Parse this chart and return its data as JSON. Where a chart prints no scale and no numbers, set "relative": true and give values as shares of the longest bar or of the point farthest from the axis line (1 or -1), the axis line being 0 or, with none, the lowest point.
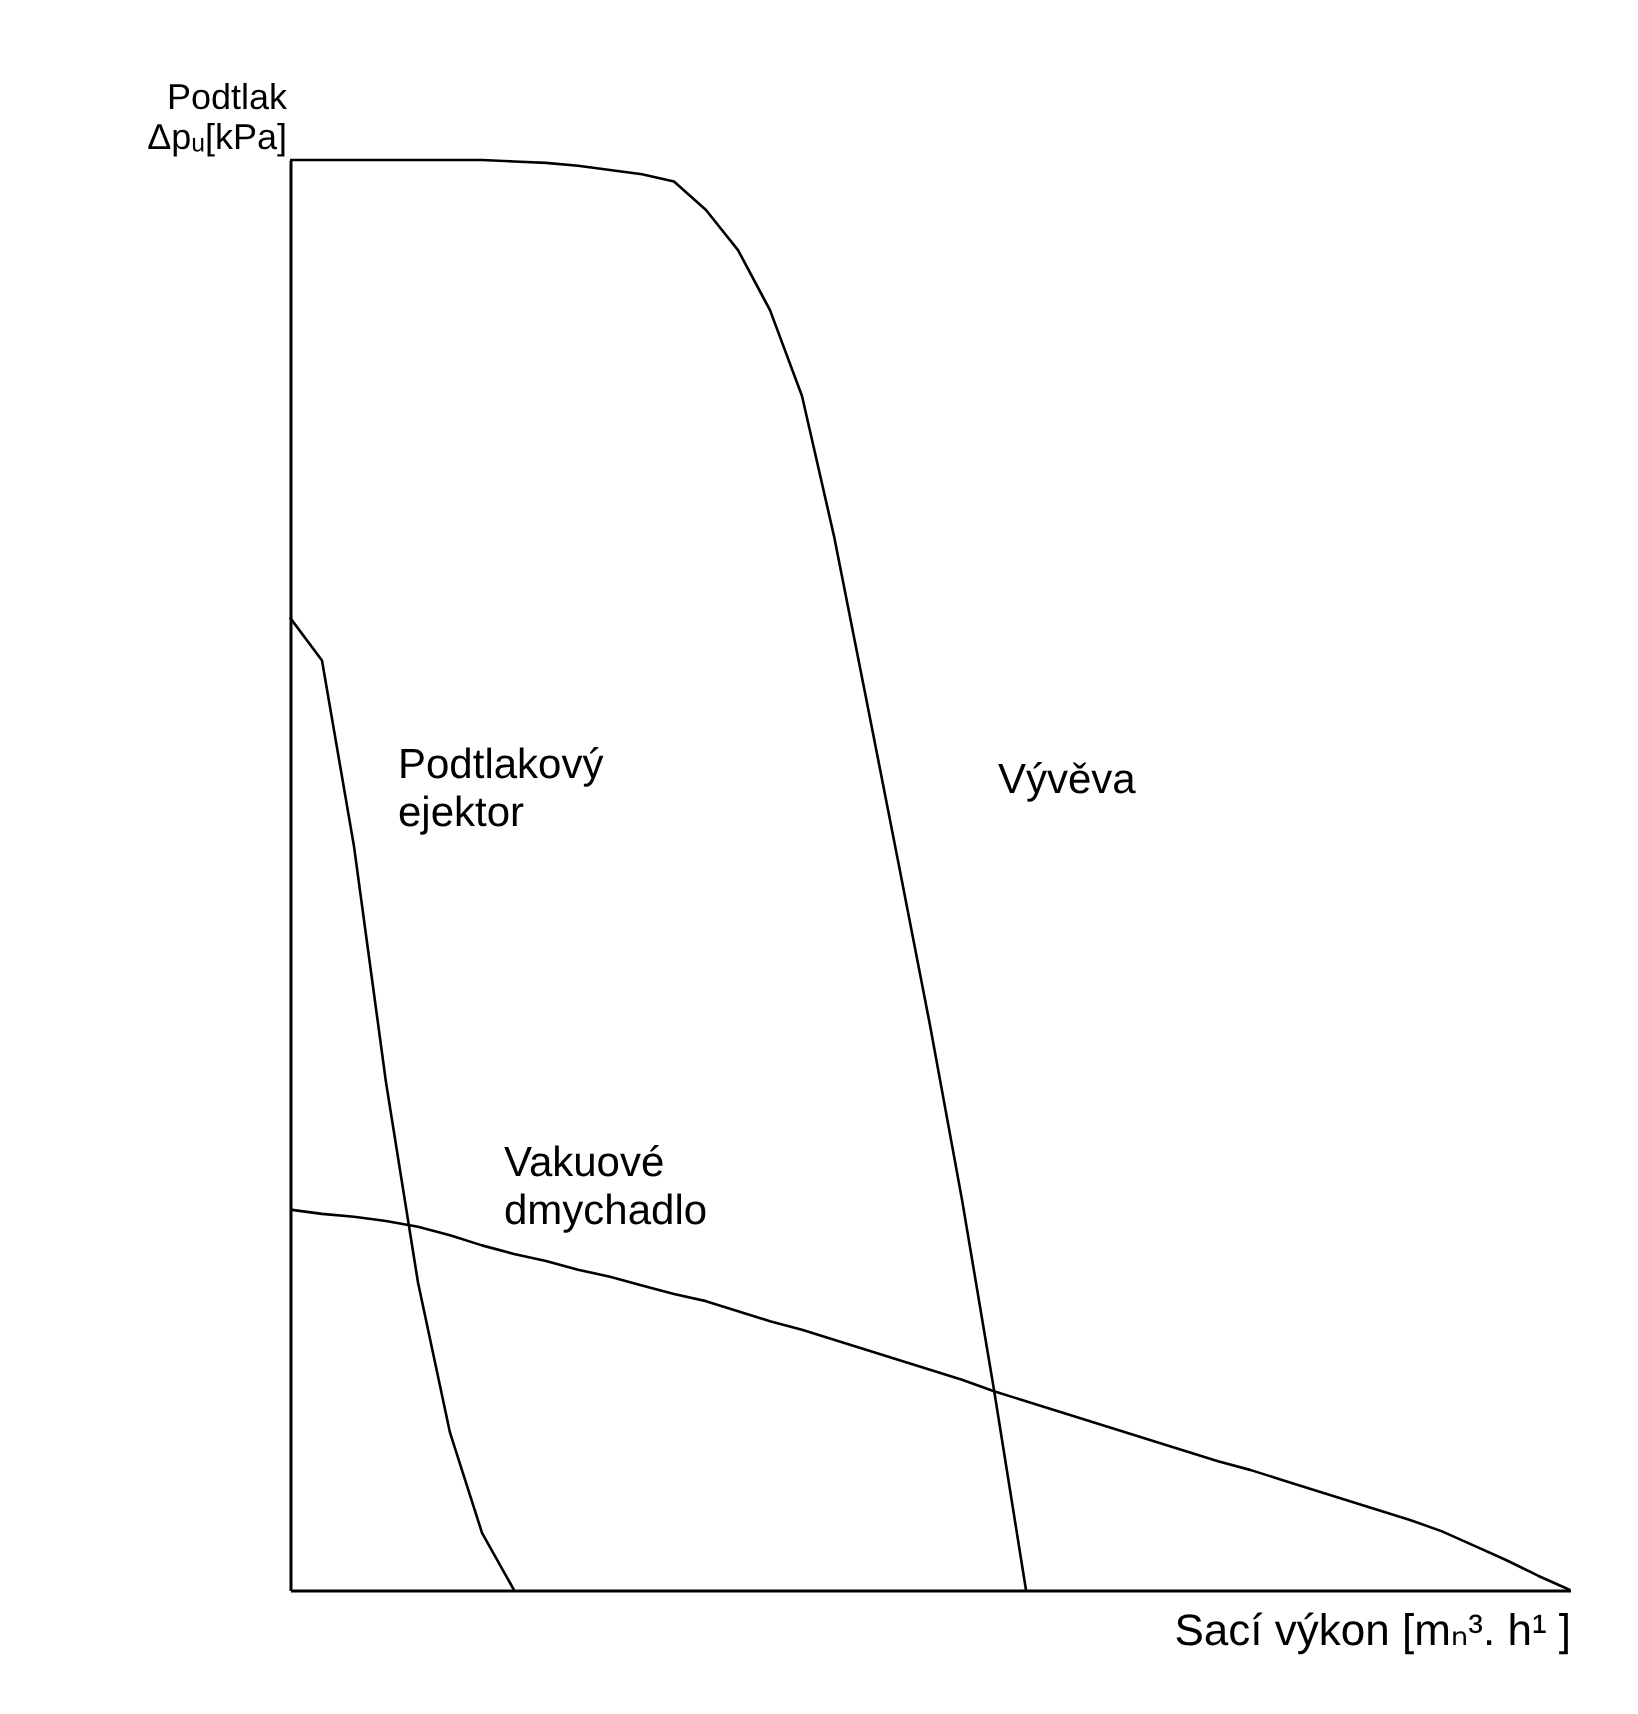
{
  "chart_data": {
    "type": "line",
    "relative": true,
    "xlabel": "Sací výkon [mₙ³. h¹ ]",
    "ylabel": "Podtlak\nΔpᵤ[kPa]",
    "categories": [
      null,
      null,
      null,
      null,
      null,
      null,
      null,
      null,
      null,
      null,
      null,
      null,
      null,
      null,
      null,
      null,
      null,
      null,
      null,
      null,
      null,
      null,
      null,
      null,
      null,
      null,
      null,
      null,
      null,
      null,
      null,
      null,
      null,
      null,
      null,
      null,
      null,
      null,
      null,
      null,
      null
    ],
    "series": [
      {
        "name": "Vývěva",
        "color": "#000000",
        "values": [
          1,
          1,
          1,
          1,
          1,
          1,
          1,
          0.999,
          0.998,
          0.996,
          0.993,
          0.99,
          0.985,
          0.965,
          0.937,
          0.895,
          0.835,
          0.737,
          0.624,
          0.51,
          0.395,
          0.273,
          0.14,
          0,
          null,
          null,
          null,
          null,
          null,
          null,
          null,
          null,
          null,
          null,
          null,
          null,
          null,
          null,
          null,
          null,
          null
        ]
      },
      {
        "name": "Podtlakový\nejektor",
        "color": "#000000",
        "values": [
          0.68,
          0.65,
          0.52,
          0.355,
          0.215,
          0.11,
          0.04,
          0,
          null,
          null,
          null,
          null,
          null,
          null,
          null,
          null,
          null,
          null,
          null,
          null,
          null,
          null,
          null,
          null,
          null,
          null,
          null,
          null,
          null,
          null,
          null,
          null,
          null,
          null,
          null,
          null,
          null,
          null,
          null,
          null,
          null
        ]
      },
      {
        "name": "Vakuové\ndmychadlo",
        "color": "#000000",
        "values": [
          0.266,
          0.263,
          0.261,
          0.258,
          0.254,
          0.248,
          0.241,
          0.235,
          0.23,
          0.224,
          0.219,
          0.213,
          0.207,
          0.202,
          0.195,
          0.188,
          0.182,
          0.175,
          0.168,
          0.161,
          0.154,
          0.147,
          0.139,
          0.132,
          0.125,
          0.118,
          0.111,
          0.104,
          0.097,
          0.09,
          0.084,
          0.077,
          0.07,
          0.063,
          0.056,
          0.049,
          0.041,
          0.031,
          0.021,
          0.01,
          0
        ]
      }
    ]
  }
}
